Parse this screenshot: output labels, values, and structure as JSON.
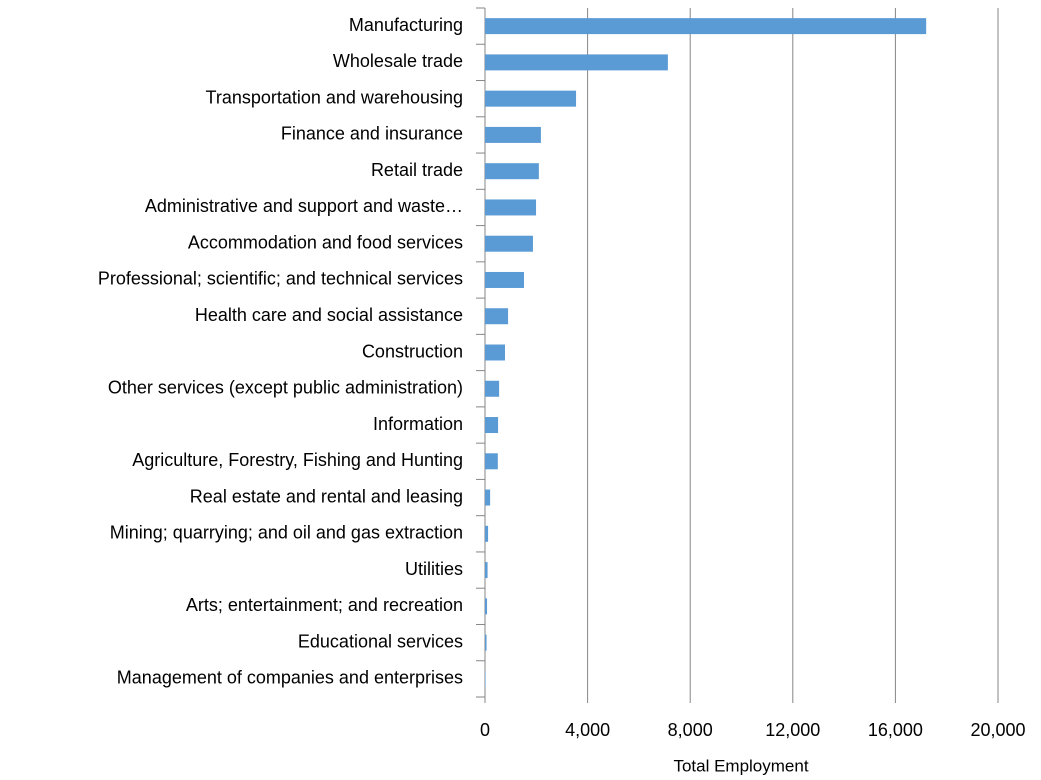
{
  "chart_data": {
    "type": "bar",
    "x_label": "Total Employment",
    "categories": [
      "Manufacturing",
      "Wholesale trade",
      "Transportation and warehousing",
      "Finance and insurance",
      "Retail trade",
      "Administrative and support and waste…",
      "Accommodation and food services",
      "Professional; scientific; and technical services",
      "Health care and social assistance",
      "Construction",
      "Other services (except public administration)",
      "Information",
      "Agriculture, Forestry, Fishing and Hunting",
      "Real estate and rental and leasing",
      "Mining; quarrying; and oil and gas extraction",
      "Utilities",
      "Arts; entertainment; and recreation",
      "Educational services",
      "Management of companies and enterprises"
    ],
    "values": [
      17200,
      7130,
      3550,
      2180,
      2100,
      1990,
      1870,
      1520,
      900,
      780,
      550,
      510,
      500,
      200,
      120,
      100,
      80,
      60,
      20
    ],
    "color": "#5b9bd5",
    "xlim": [
      0,
      20000
    ],
    "xticks": [
      0,
      {
        "value": 4000,
        "label": "4,000"
      },
      {
        "value": 8000,
        "label": "8,000"
      },
      {
        "value": 12000,
        "label": "12,000"
      },
      {
        "value": 16000,
        "label": "16,000"
      },
      {
        "value": 20000,
        "label": "20,000"
      }
    ],
    "grid": true
  }
}
